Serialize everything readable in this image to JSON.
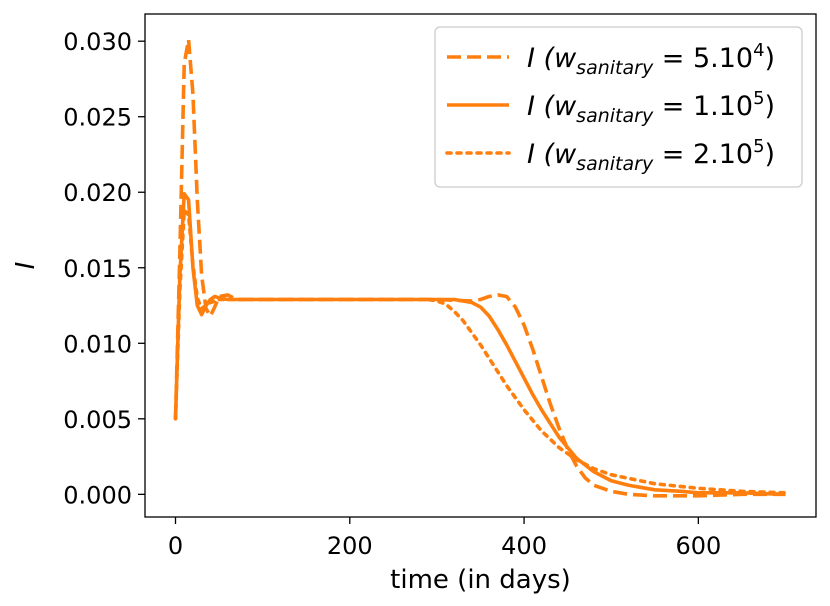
{
  "chart_data": {
    "type": "line",
    "title": "",
    "xlabel": "time (in days)",
    "ylabel": "I",
    "xlim": [
      -35,
      735
    ],
    "ylim": [
      -0.0015,
      0.0318
    ],
    "xticks": [
      0,
      200,
      400,
      600
    ],
    "xtick_labels": [
      "0",
      "200",
      "400",
      "600"
    ],
    "yticks": [
      0.0,
      0.005,
      0.01,
      0.015,
      0.02,
      0.025,
      0.03
    ],
    "ytick_labels": [
      "0.000",
      "0.005",
      "0.010",
      "0.015",
      "0.020",
      "0.025",
      "0.030"
    ],
    "grid": false,
    "legend_position": "top-right",
    "color": "#ff7f0e",
    "series": [
      {
        "name": "I (w_sanitary = 5.10^4)",
        "legend": {
          "main": "I (w",
          "sub": "sanitary",
          "mid": " = 5.10",
          "sup": "4",
          "end": ")"
        },
        "style": "dashed",
        "x": [
          0,
          5,
          10,
          15,
          20,
          25,
          30,
          35,
          40,
          45,
          50,
          60,
          70,
          80,
          100,
          150,
          200,
          250,
          300,
          340,
          350,
          360,
          370,
          380,
          390,
          400,
          410,
          420,
          430,
          440,
          450,
          460,
          470,
          480,
          500,
          520,
          550,
          580,
          600,
          650,
          700
        ],
        "y": [
          0.005,
          0.016,
          0.0285,
          0.0301,
          0.0265,
          0.0195,
          0.0145,
          0.0123,
          0.0118,
          0.0124,
          0.0131,
          0.0132,
          0.0129,
          0.0129,
          0.0129,
          0.0129,
          0.0129,
          0.0129,
          0.0129,
          0.0128,
          0.0129,
          0.0131,
          0.0132,
          0.0131,
          0.0124,
          0.0112,
          0.0096,
          0.0078,
          0.006,
          0.0044,
          0.003,
          0.0019,
          0.0011,
          0.0006,
          0.0002,
          0.0,
          -0.0001,
          -0.0001,
          -0.0001,
          0.0,
          0.0
        ]
      },
      {
        "name": "I (w_sanitary = 1.10^5)",
        "legend": {
          "main": "I (w",
          "sub": "sanitary",
          "mid": " = 1.10",
          "sup": "5",
          "end": ")"
        },
        "style": "solid",
        "x": [
          0,
          5,
          10,
          15,
          20,
          25,
          30,
          35,
          40,
          45,
          50,
          60,
          70,
          80,
          100,
          150,
          200,
          250,
          300,
          320,
          330,
          340,
          350,
          360,
          370,
          380,
          390,
          400,
          410,
          420,
          440,
          460,
          480,
          500,
          520,
          550,
          580,
          600,
          650,
          700
        ],
        "y": [
          0.005,
          0.0145,
          0.0199,
          0.0195,
          0.015,
          0.0125,
          0.0119,
          0.0125,
          0.0129,
          0.0131,
          0.013,
          0.0129,
          0.0129,
          0.0129,
          0.0129,
          0.0129,
          0.0129,
          0.0129,
          0.0129,
          0.0129,
          0.0128,
          0.0127,
          0.0124,
          0.0118,
          0.0109,
          0.0099,
          0.0088,
          0.0077,
          0.0066,
          0.0056,
          0.0038,
          0.0024,
          0.0015,
          0.0009,
          0.0006,
          0.0003,
          0.0002,
          0.0001,
          0.0001,
          0.0
        ]
      },
      {
        "name": "I (w_sanitary = 2.10^5)",
        "legend": {
          "main": "I (w",
          "sub": "sanitary",
          "mid": " = 2.10",
          "sup": "5",
          "end": ")"
        },
        "style": "dotted",
        "x": [
          0,
          5,
          10,
          15,
          20,
          25,
          30,
          40,
          50,
          60,
          80,
          100,
          150,
          200,
          250,
          290,
          300,
          310,
          320,
          330,
          340,
          350,
          360,
          370,
          380,
          390,
          400,
          420,
          440,
          460,
          480,
          500,
          550,
          600,
          650,
          700
        ],
        "y": [
          0.005,
          0.0135,
          0.0188,
          0.0185,
          0.0152,
          0.013,
          0.0123,
          0.0127,
          0.0129,
          0.0129,
          0.0129,
          0.0129,
          0.0129,
          0.0129,
          0.0129,
          0.0129,
          0.0128,
          0.0126,
          0.0121,
          0.0115,
          0.0107,
          0.0099,
          0.009,
          0.0081,
          0.0072,
          0.0064,
          0.0056,
          0.0042,
          0.0031,
          0.0023,
          0.0017,
          0.0013,
          0.0007,
          0.0004,
          0.0002,
          0.0001
        ]
      }
    ]
  }
}
